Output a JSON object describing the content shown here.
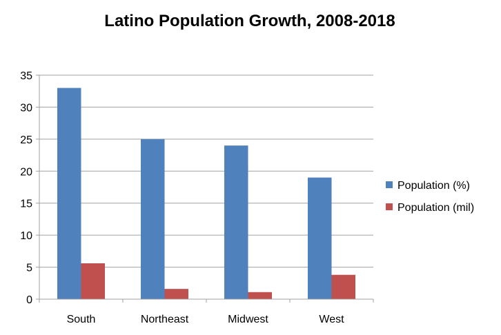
{
  "chart_data": {
    "type": "bar",
    "title": "Latino Population Growth, 2008-2018",
    "categories": [
      "South",
      "Northeast",
      "Midwest",
      "West"
    ],
    "series": [
      {
        "name": "Population (%)",
        "values": [
          33,
          25,
          24,
          19
        ],
        "color": "#4f81bd"
      },
      {
        "name": "Population (mil)",
        "values": [
          5.6,
          1.6,
          1.1,
          3.8
        ],
        "color": "#c0504d"
      }
    ],
    "yticks": [
      "0",
      "5",
      "10",
      "15",
      "20",
      "25",
      "30",
      "35"
    ],
    "ylim": [
      0,
      35
    ],
    "xlabel": "",
    "ylabel": "",
    "grid": true,
    "legend": "right"
  }
}
